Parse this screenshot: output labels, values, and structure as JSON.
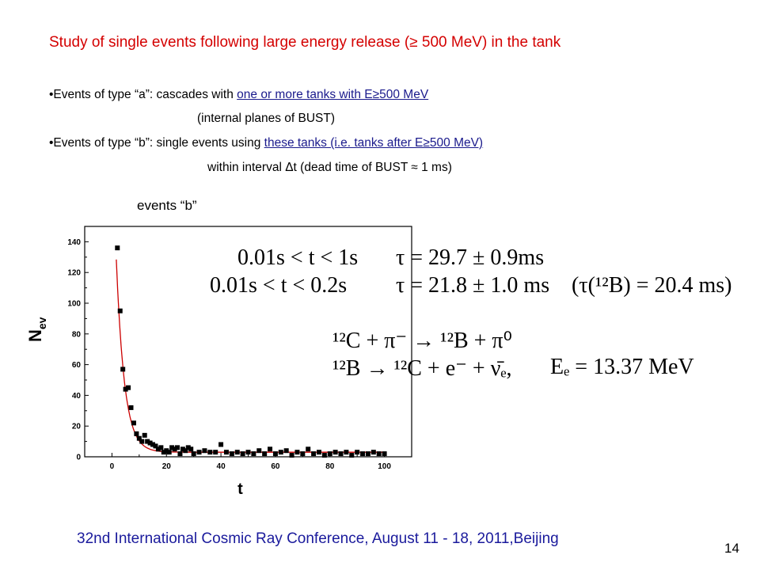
{
  "slide": {
    "title": "Study of single events  following large energy release  (≥ 500 MeV) in the tank",
    "bullets": [
      {
        "prefix": "•Events of type “a”:  cascades with ",
        "underlined": "one or more tanks  with E≥500 MeV",
        "note": "(internal planes of BUST)"
      },
      {
        "prefix": "•Events of type “b”:  single events  using ",
        "underlined": "these tanks (i.e. tanks after E≥500 MeV)",
        "note": "within interval  Δt (dead time of  BUST ≈ 1 ms)"
      }
    ],
    "events_label": "events “b”",
    "footer": "32nd International Cosmic Ray Conference, August 11 - 18, 2011,Beijing",
    "page_number": "14"
  },
  "equations": {
    "fit1_range": "0.01s < t < 1s",
    "fit1_tau": "τ = 29.7 ± 0.9ms",
    "fit2_range": "0.01s < t < 0.2s",
    "fit2_tau": "τ = 21.8 ± 1.0 ms",
    "ref_tau": "(τ(¹²B) = 20.4 ms)",
    "reaction1": "¹²C + π⁻ → ¹²B + π⁰",
    "reaction2": "¹²B → ¹²C + e⁻ + ν̄ₑ,",
    "energy": "Eₑ = 13.37 MeV"
  },
  "chart_data": {
    "type": "scatter",
    "title": "",
    "xlabel": "t",
    "ylabel": "N_ev",
    "xlim": [
      -10,
      110
    ],
    "ylim": [
      0,
      150
    ],
    "x_ticks": [
      0,
      20,
      40,
      60,
      80,
      100
    ],
    "y_ticks": [
      0,
      20,
      40,
      60,
      80,
      100,
      120,
      140
    ],
    "grid": false,
    "series": [
      {
        "marker": "square",
        "color": "#000000",
        "x": [
          2,
          3,
          4,
          5,
          6,
          7,
          8,
          9,
          10,
          11,
          12,
          13,
          14,
          15,
          16,
          17,
          18,
          19,
          20,
          21,
          22,
          23,
          24,
          25,
          26,
          27,
          28,
          29,
          30,
          32,
          34,
          36,
          38,
          40,
          42,
          44,
          46,
          48,
          50,
          52,
          54,
          56,
          58,
          60,
          62,
          64,
          66,
          68,
          70,
          72,
          74,
          76,
          78,
          80,
          82,
          84,
          86,
          88,
          90,
          92,
          94,
          96,
          98,
          100
        ],
        "y": [
          136,
          95,
          57,
          44,
          45,
          32,
          22,
          15,
          12,
          10,
          14,
          10,
          9,
          8,
          7,
          5,
          6,
          3,
          4,
          3,
          6,
          5,
          6,
          2,
          5,
          4,
          6,
          5,
          2,
          3,
          4,
          3,
          3,
          8,
          3,
          2,
          3,
          2,
          3,
          2,
          4,
          2,
          5,
          2,
          3,
          4,
          1,
          3,
          2,
          5,
          2,
          3,
          1,
          2,
          3,
          2,
          3,
          1,
          3,
          2,
          2,
          3,
          2,
          2
        ]
      },
      {
        "type": "line",
        "color": "#cc0000",
        "fit": {
          "A": 215,
          "tau": 2.97,
          "C": 3
        }
      }
    ]
  }
}
